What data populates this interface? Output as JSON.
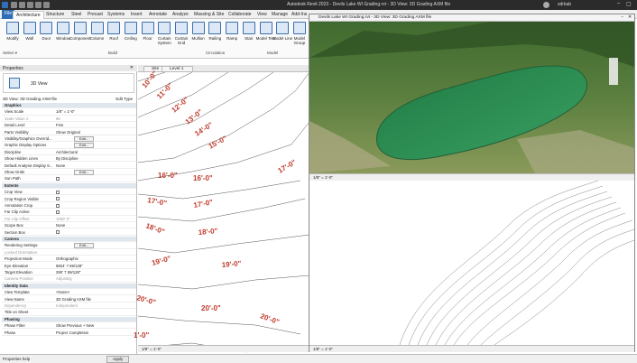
{
  "app": {
    "title": "Autodesk Revit 2023 - Devils Lake WI Grading.rvt - 3D View: 3D Grading AXM file",
    "user": "sdrkab",
    "colors": {
      "accent": "#2f6fb7",
      "label_red": "#c0392b",
      "lake": "#2e8b57"
    }
  },
  "ribbon": {
    "tabs": [
      "File",
      "Architecture",
      "Structure",
      "Steel",
      "Precast",
      "Systems",
      "Insert",
      "Annotate",
      "Analyze",
      "Massing & Site",
      "Collaborate",
      "View",
      "Manage",
      "Add-Ins"
    ],
    "active_tab": "Architecture",
    "buttons": [
      {
        "label": "Modify",
        "icon": "cursor-icon"
      },
      {
        "label": "Wall",
        "icon": "wall-icon"
      },
      {
        "label": "Door",
        "icon": "door-icon"
      },
      {
        "label": "Window",
        "icon": "window-icon"
      },
      {
        "label": "Component",
        "icon": "component-icon"
      },
      {
        "label": "Column",
        "icon": "column-icon"
      },
      {
        "label": "Roof",
        "icon": "roof-icon"
      },
      {
        "label": "Ceiling",
        "icon": "ceiling-icon"
      },
      {
        "label": "Floor",
        "icon": "floor-icon"
      },
      {
        "label": "Curtain System",
        "icon": "curtain-system-icon"
      },
      {
        "label": "Curtain Grid",
        "icon": "curtain-grid-icon"
      },
      {
        "label": "Mullion",
        "icon": "mullion-icon"
      },
      {
        "label": "Railing",
        "icon": "railing-icon"
      },
      {
        "label": "Ramp",
        "icon": "ramp-icon"
      },
      {
        "label": "Stair",
        "icon": "stair-icon"
      },
      {
        "label": "Model Text",
        "icon": "model-text-icon"
      },
      {
        "label": "Model Line",
        "icon": "model-line-icon"
      },
      {
        "label": "Model Group",
        "icon": "model-group-icon"
      }
    ],
    "groups": {
      "select": "Select ▾",
      "build": "Build",
      "circulation": "Circulation",
      "model": "Model"
    }
  },
  "properties": {
    "title": "Properties",
    "type_name": "3D View",
    "selector": "3D View: 3D Grading AXM file",
    "edit_type": "Edit Type",
    "edit_label": "Edit...",
    "rows": [
      {
        "type": "section",
        "k": "Graphics"
      },
      {
        "k": "View Scale",
        "v": "1/8\" = 1'-0\""
      },
      {
        "k": "Scale Value  1:",
        "v": "96",
        "dim": true
      },
      {
        "k": "Detail Level",
        "v": "Fine"
      },
      {
        "k": "Parts Visibility",
        "v": "Show Original"
      },
      {
        "k": "Visibility/Graphics Overrid...",
        "v": "",
        "btn": true
      },
      {
        "k": "Graphic Display Options",
        "v": "",
        "btn": true
      },
      {
        "k": "Discipline",
        "v": "Architectural"
      },
      {
        "k": "Show Hidden Lines",
        "v": "By Discipline"
      },
      {
        "k": "Default Analysis Display S...",
        "v": "None"
      },
      {
        "k": "Show Grids",
        "v": "",
        "btn": true
      },
      {
        "k": "Sun Path",
        "v": "",
        "cb": true
      },
      {
        "type": "section",
        "k": "Extents"
      },
      {
        "k": "Crop View",
        "v": "",
        "cb": true
      },
      {
        "k": "Crop Region Visible",
        "v": "",
        "cb": true
      },
      {
        "k": "Annotation Crop",
        "v": "",
        "cb": true
      },
      {
        "k": "Far Clip Active",
        "v": "",
        "cb": true
      },
      {
        "k": "Far Clip Offset",
        "v": "1000' 0\"",
        "dim": true
      },
      {
        "k": "Scope Box",
        "v": "None"
      },
      {
        "k": "Section Box",
        "v": "",
        "cb": true
      },
      {
        "type": "section",
        "k": "Camera"
      },
      {
        "k": "Rendering Settings",
        "v": "",
        "btn": true
      },
      {
        "k": "Locked Orientation",
        "v": "",
        "dim": true
      },
      {
        "k": "Projection Mode",
        "v": "Orthographic"
      },
      {
        "k": "Eye Elevation",
        "v": "5824' 7 69/128\""
      },
      {
        "k": "Target Elevation",
        "v": "290' 7 59/128\""
      },
      {
        "k": "Camera Position",
        "v": "Adjusting",
        "dim": true
      },
      {
        "type": "section",
        "k": "Identity Data"
      },
      {
        "k": "View Template",
        "v": "<None>"
      },
      {
        "k": "View Name",
        "v": "3D Grading AXM file"
      },
      {
        "k": "Dependency",
        "v": "Independent",
        "dim": true
      },
      {
        "k": "Title on Sheet",
        "v": ""
      },
      {
        "type": "section",
        "k": "Phasing"
      },
      {
        "k": "Phase Filter",
        "v": "Show Previous + New"
      },
      {
        "k": "Phase",
        "v": "Project Completion"
      }
    ],
    "help": "Properties help",
    "apply": "Apply"
  },
  "view_tabs": [
    "Site",
    "Level 1"
  ],
  "window_3d": {
    "title": "Devils Lake WI Grading.rvt - 3D View: 3D Grading AXM file",
    "scale": "1/8\" = 1'-0\""
  },
  "window_plan": {
    "title": "Dev",
    "scale": "1/8\" = 1'-0\""
  },
  "main_scale": "1/8\" = 1'-0\"",
  "contours": [
    {
      "label": "10'-0\"",
      "x": 8,
      "y": 18,
      "rot": -50
    },
    {
      "label": "11'-0\"",
      "x": 24,
      "y": 30,
      "rot": -45
    },
    {
      "label": "12'-0\"",
      "x": 40,
      "y": 45,
      "rot": -40
    },
    {
      "label": "13'-0\"",
      "x": 55,
      "y": 58,
      "rot": -38
    },
    {
      "label": "14'-0\"",
      "x": 65,
      "y": 71,
      "rot": -32
    },
    {
      "label": "15'-0\"",
      "x": 80,
      "y": 85,
      "rot": -28
    },
    {
      "label": "16'-0\"",
      "x": 22,
      "y": 117,
      "rot": 0
    },
    {
      "label": "16'-0\"",
      "x": 61,
      "y": 120,
      "rot": 0
    },
    {
      "label": "17'-0\"",
      "x": 157,
      "y": 112,
      "rot": -30
    },
    {
      "label": "17'-0\"",
      "x": 10,
      "y": 144,
      "rot": 10
    },
    {
      "label": "17'-0\"",
      "x": 62,
      "y": 150,
      "rot": -10
    },
    {
      "label": "18'-0\"",
      "x": 8,
      "y": 172,
      "rot": 20
    },
    {
      "label": "18'-0\"",
      "x": 67,
      "y": 180,
      "rot": -5
    },
    {
      "label": "19'-0\"",
      "x": 16,
      "y": 214,
      "rot": -15
    },
    {
      "label": "19'-0\"",
      "x": 93,
      "y": 216,
      "rot": -5
    },
    {
      "label": "20'-0\"",
      "x": -2,
      "y": 252,
      "rot": 15
    },
    {
      "label": "20'-0\"",
      "x": 70,
      "y": 264,
      "rot": 0
    },
    {
      "label": "20'-0\"",
      "x": 135,
      "y": 272,
      "rot": 20
    },
    {
      "label": "1'-0\"",
      "x": -5,
      "y": 294,
      "rot": 0
    }
  ]
}
